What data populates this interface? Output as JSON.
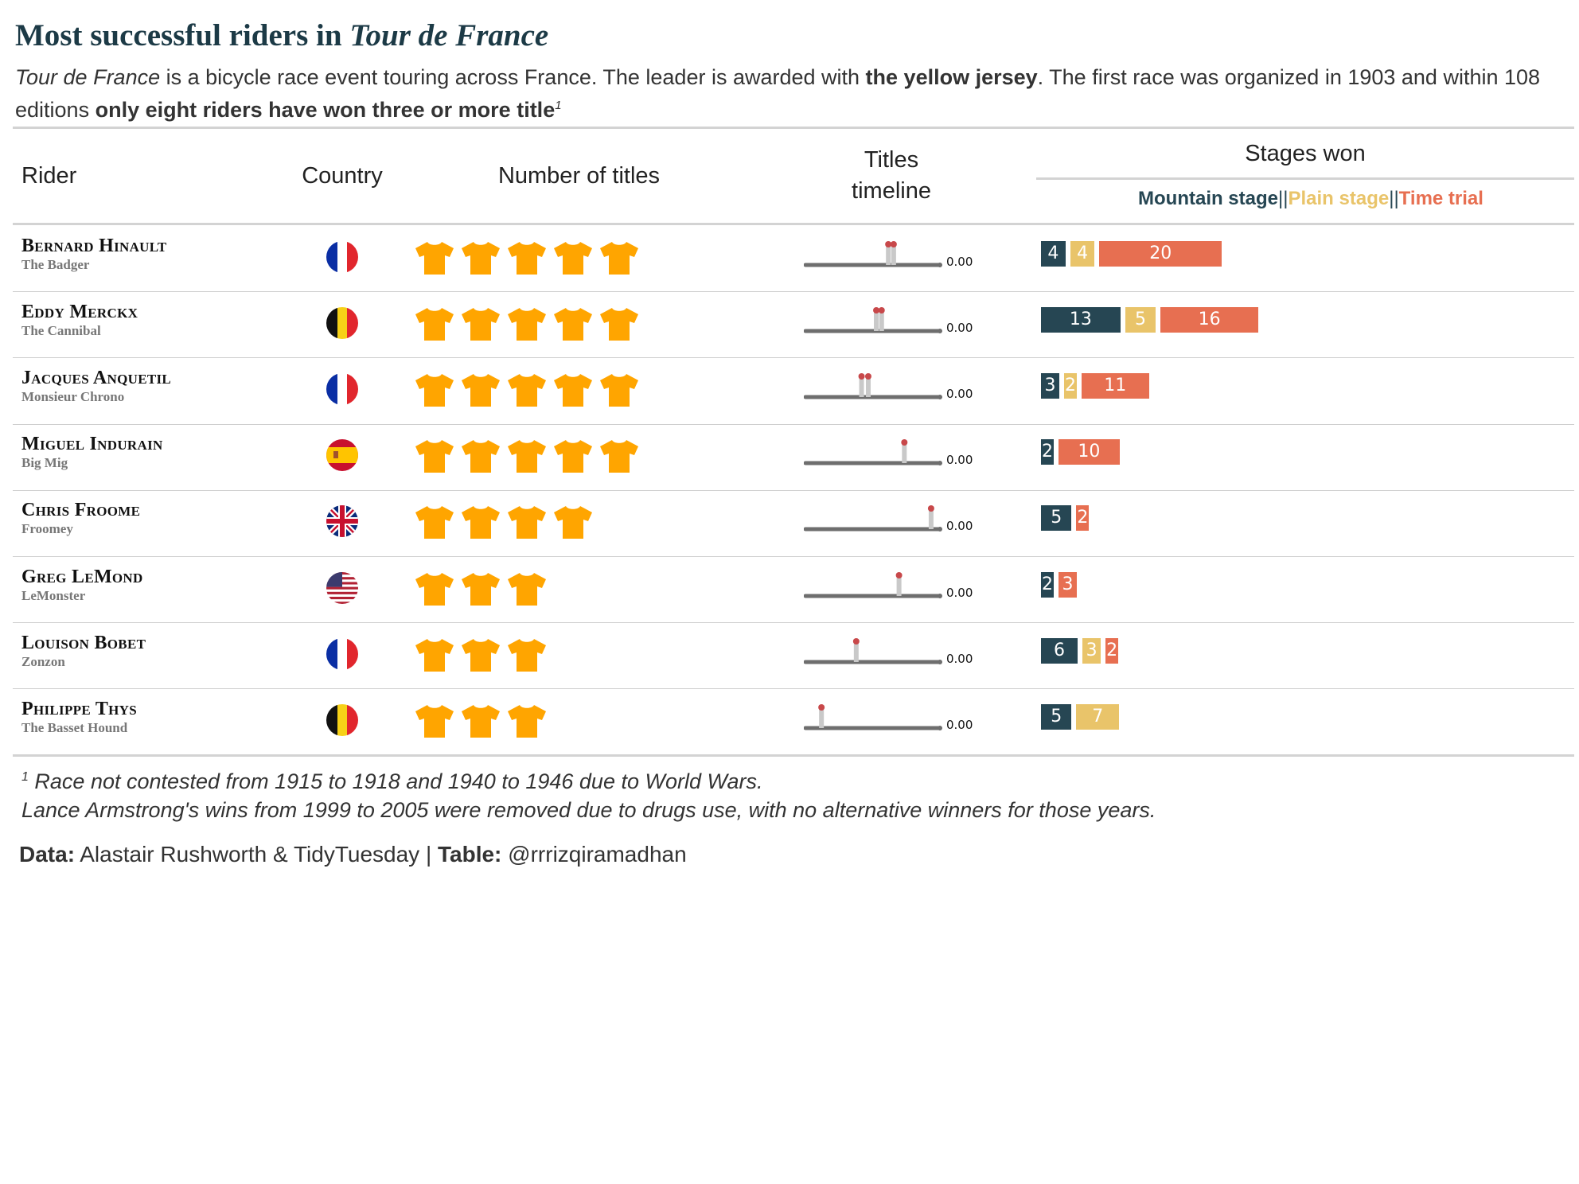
{
  "title": {
    "prefix": "Most successful riders in ",
    "italic": "Tour de France"
  },
  "subtitle": {
    "part1_italic": "Tour de France",
    "part2": " is a bicycle race event touring across France. The leader is awarded with ",
    "part3_bold": "the yellow jersey",
    "part4": ". The first race was organized in 1903 and within 108 editions ",
    "part5_bold": "only eight riders have won three or more title",
    "sup": "1"
  },
  "headers": {
    "rider": "Rider",
    "country": "Country",
    "titles": "Number of titles",
    "timeline_1": "Titles",
    "timeline_2": "timeline",
    "stages": "Stages won"
  },
  "legend": {
    "mountain": "Mountain stage",
    "sep1": "||",
    "plain": "Plain stage",
    "sep2": "||",
    "time": "Time trial"
  },
  "colors": {
    "mountain": "#264653",
    "plain": "#e9c46a",
    "time": "#e76f51",
    "jersey": "#ffa500",
    "timeline_line": "#6e6e6e",
    "timeline_marker": "#c9c9c9",
    "timeline_dot": "#c8484a"
  },
  "chart_data": {
    "type": "table",
    "columns": [
      "Rider",
      "Country",
      "Number of titles",
      "Titles timeline",
      "Stages won"
    ],
    "stage_series": [
      "Mountain stage",
      "Plain stage",
      "Time trial"
    ],
    "rows": [
      {
        "name": "Bernard Hinault",
        "nickname": "The Badger",
        "country": "france",
        "titles": 5,
        "timeline_pos": [
          0.62,
          0.66
        ],
        "timeline_value": "0.00",
        "stages": [
          4,
          4,
          20
        ]
      },
      {
        "name": "Eddy Merckx",
        "nickname": "The Cannibal",
        "country": "belgium",
        "titles": 5,
        "timeline_pos": [
          0.53,
          0.57
        ],
        "timeline_value": "0.00",
        "stages": [
          13,
          5,
          16
        ]
      },
      {
        "name": "Jacques Anquetil",
        "nickname": "Monsieur Chrono",
        "country": "france",
        "titles": 5,
        "timeline_pos": [
          0.42,
          0.47
        ],
        "timeline_value": "0.00",
        "stages": [
          3,
          2,
          11
        ]
      },
      {
        "name": "Miguel Indurain",
        "nickname": "Big Mig",
        "country": "spain",
        "titles": 5,
        "timeline_pos": [
          0.74
        ],
        "timeline_value": "0.00",
        "stages": [
          2,
          0,
          10
        ]
      },
      {
        "name": "Chris Froome",
        "nickname": "Froomey",
        "country": "uk",
        "titles": 4,
        "timeline_pos": [
          0.94
        ],
        "timeline_value": "0.00",
        "stages": [
          5,
          0,
          2
        ]
      },
      {
        "name": "Greg LeMond",
        "nickname": "LeMonster",
        "country": "usa",
        "titles": 3,
        "timeline_pos": [
          0.7
        ],
        "timeline_value": "0.00",
        "stages": [
          2,
          0,
          3
        ]
      },
      {
        "name": "Louison Bobet",
        "nickname": "Zonzon",
        "country": "france",
        "titles": 3,
        "timeline_pos": [
          0.38
        ],
        "timeline_value": "0.00",
        "stages": [
          6,
          3,
          2
        ]
      },
      {
        "name": "Philippe Thys",
        "nickname": "The Basset Hound",
        "country": "belgium",
        "titles": 3,
        "timeline_pos": [
          0.12
        ],
        "timeline_value": "0.00",
        "stages": [
          5,
          7,
          0
        ]
      }
    ]
  },
  "footnotes": {
    "sup": "1",
    "line1": " Race not contested from 1915 to 1918 and 1940 to 1946 due to World Wars.",
    "line2": "Lance Armstrong's wins from 1999 to 2005 were removed due to drugs use, with no alternative winners for those years."
  },
  "source": {
    "data_label": "Data:",
    "data_value": " Alastair Rushworth & TidyTuesday | ",
    "table_label": "Table:",
    "table_value": " @rrrizqiramadhan"
  }
}
